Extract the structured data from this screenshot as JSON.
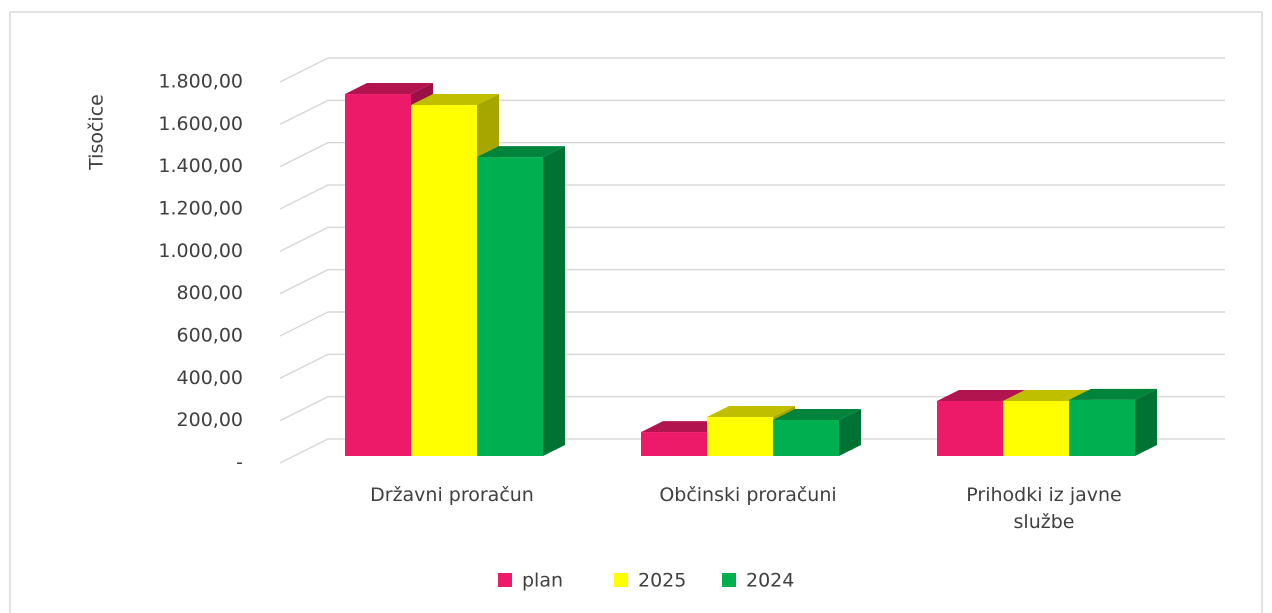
{
  "chart_data": {
    "type": "bar3d",
    "y_label": "Tisočice",
    "categories": [
      "Državni proračun",
      "Občinski proračuni",
      "Prihodki iz javne službe"
    ],
    "series": [
      {
        "name": "plan",
        "color": "#ed1a6a",
        "values": [
          1710,
          113,
          260
        ]
      },
      {
        "name": "2025",
        "color": "#ffff00",
        "values": [
          1658,
          184,
          260
        ]
      },
      {
        "name": "2024",
        "color": "#00b050",
        "values": [
          1412,
          170,
          265
        ]
      }
    ],
    "ylim": [
      0,
      1800
    ],
    "yticks": [
      {
        "value": 0,
        "label": "-"
      },
      {
        "value": 200,
        "label": "200,00"
      },
      {
        "value": 400,
        "label": "400,00"
      },
      {
        "value": 600,
        "label": "600,00"
      },
      {
        "value": 800,
        "label": "800,00"
      },
      {
        "value": 1000,
        "label": "1.000,00"
      },
      {
        "value": 1200,
        "label": "1.200,00"
      },
      {
        "value": 1400,
        "label": "1.400,00"
      },
      {
        "value": 1600,
        "label": "1.600,00"
      },
      {
        "value": 1800,
        "label": "1.800,00"
      }
    ],
    "grid": true,
    "legend": "bottom"
  }
}
